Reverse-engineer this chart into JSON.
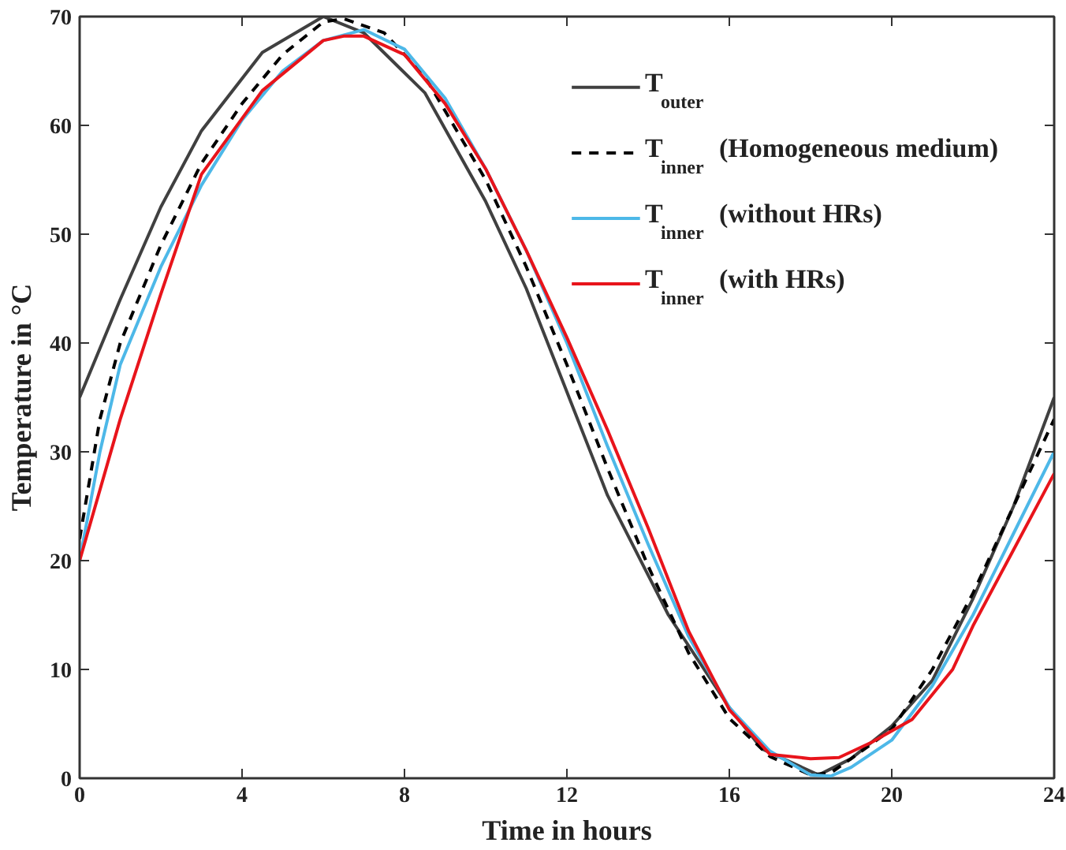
{
  "chart_data": {
    "type": "line",
    "xlabel": "Time in hours",
    "ylabel": "Temperature in °C",
    "xlim": [
      0,
      24
    ],
    "ylim": [
      0,
      70
    ],
    "xticks": [
      0,
      4,
      8,
      12,
      16,
      20,
      24
    ],
    "yticks": [
      0,
      10,
      20,
      30,
      40,
      50,
      60,
      70
    ],
    "grid": false,
    "legend": "top right",
    "marker": "none",
    "series": [
      {
        "name": "T$_{outer}$",
        "color": "#404040",
        "line_style": "solid",
        "x": [
          0,
          1,
          2,
          3,
          4.5,
          6,
          7,
          8.5,
          10,
          11,
          12,
          13,
          14.5,
          16,
          16.8,
          18.2,
          19,
          20,
          21,
          22,
          23,
          24
        ],
        "values": [
          35,
          44,
          52.5,
          59.5,
          66.7,
          70,
          68.5,
          63,
          53,
          45,
          35.5,
          26,
          15,
          6.5,
          2.7,
          0.3,
          1.8,
          4.8,
          9,
          16.5,
          25,
          35
        ]
      },
      {
        "name": "T$_{inner}$ (Homogeneous medium)",
        "color": "#000000",
        "line_style": "dashed",
        "x": [
          0,
          0.5,
          1,
          2,
          3,
          4,
          5,
          6,
          6.5,
          7.5,
          8.5,
          10,
          11,
          12,
          13,
          14,
          15,
          16,
          17,
          18,
          18.5,
          19,
          20,
          21,
          22,
          23,
          24
        ],
        "values": [
          22,
          33,
          40,
          49,
          56.5,
          62,
          66.5,
          69.5,
          69.8,
          68.5,
          64.5,
          55,
          47,
          38,
          28.5,
          19.5,
          11.5,
          5.5,
          2,
          0.3,
          0.5,
          1.8,
          4.5,
          10,
          17,
          25,
          33
        ]
      },
      {
        "name": "T$_{inner}$ (without HRs)",
        "color": "#4db8e8",
        "line_style": "solid",
        "x": [
          0,
          0.5,
          1,
          2,
          3,
          4,
          5,
          6,
          7,
          8,
          9,
          10,
          11,
          12,
          13,
          14,
          15,
          16,
          17,
          18,
          18.5,
          19,
          20,
          21,
          22,
          23,
          24
        ],
        "values": [
          20,
          30,
          38,
          47,
          54.5,
          60.5,
          65,
          67.8,
          68.8,
          67,
          62.5,
          56,
          48.5,
          40,
          30.5,
          21.5,
          13,
          6.5,
          2.5,
          0.3,
          0.2,
          1,
          3.5,
          8.5,
          15,
          22.5,
          30
        ]
      },
      {
        "name": "T$_{inner}$ (with HRs)",
        "color": "#e8141b",
        "line_style": "solid",
        "x": [
          0,
          1,
          2,
          3,
          4.5,
          6,
          6.5,
          7,
          8,
          9,
          10,
          11,
          12,
          13,
          14,
          15,
          16,
          17,
          18,
          18.7,
          19.5,
          20.5,
          21.5,
          22,
          23,
          24
        ],
        "values": [
          20,
          33,
          44.5,
          55.5,
          63.2,
          67.8,
          68.2,
          68.2,
          66.5,
          62,
          56,
          48.5,
          40.5,
          32,
          23,
          13.5,
          6.3,
          2.2,
          1.8,
          1.9,
          3.3,
          5.4,
          10,
          14,
          21,
          28
        ]
      }
    ]
  }
}
